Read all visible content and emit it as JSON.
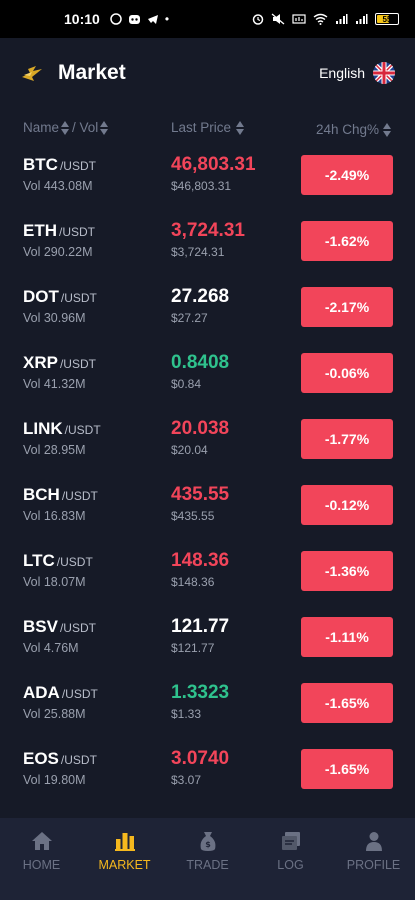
{
  "status_bar": {
    "time": "10:10",
    "battery": "55"
  },
  "header": {
    "title": "Market",
    "language": "English"
  },
  "columns": {
    "name": "Name",
    "vol": "/ Vol",
    "price": "Last Price",
    "change": "24h Chg%"
  },
  "pair_suffix": "/USDT",
  "rows": [
    {
      "symbol": "BTC",
      "pair": "/USDT",
      "volume": "Vol 443.08M",
      "price": "46,803.31",
      "usd": "$46,803.31",
      "change": "-2.49%",
      "price_color": "red"
    },
    {
      "symbol": "ETH",
      "pair": "/USDT",
      "volume": "Vol 290.22M",
      "price": "3,724.31",
      "usd": "$3,724.31",
      "change": "-1.62%",
      "price_color": "red"
    },
    {
      "symbol": "DOT",
      "pair": "/USDT",
      "volume": "Vol 30.96M",
      "price": "27.268",
      "usd": "$27.27",
      "change": "-2.17%",
      "price_color": "white"
    },
    {
      "symbol": "XRP",
      "pair": "/USDT",
      "volume": "Vol 41.32M",
      "price": "0.8408",
      "usd": "$0.84",
      "change": "-0.06%",
      "price_color": "green"
    },
    {
      "symbol": "LINK",
      "pair": "/USDT",
      "volume": "Vol 28.95M",
      "price": "20.038",
      "usd": "$20.04",
      "change": "-1.77%",
      "price_color": "red"
    },
    {
      "symbol": "BCH",
      "pair": "/USDT",
      "volume": "Vol 16.83M",
      "price": "435.55",
      "usd": "$435.55",
      "change": "-0.12%",
      "price_color": "red"
    },
    {
      "symbol": "LTC",
      "pair": "/USDT",
      "volume": "Vol 18.07M",
      "price": "148.36",
      "usd": "$148.36",
      "change": "-1.36%",
      "price_color": "red"
    },
    {
      "symbol": "BSV",
      "pair": "/USDT",
      "volume": "Vol 4.76M",
      "price": "121.77",
      "usd": "$121.77",
      "change": "-1.11%",
      "price_color": "white"
    },
    {
      "symbol": "ADA",
      "pair": "/USDT",
      "volume": "Vol 25.88M",
      "price": "1.3323",
      "usd": "$1.33",
      "change": "-1.65%",
      "price_color": "green"
    },
    {
      "symbol": "EOS",
      "pair": "/USDT",
      "volume": "Vol 19.80M",
      "price": "3.0740",
      "usd": "$3.07",
      "change": "-1.65%",
      "price_color": "red"
    }
  ],
  "nav": [
    {
      "label": "HOME",
      "icon": "home-icon",
      "active": false
    },
    {
      "label": "MARKET",
      "icon": "market-icon",
      "active": true
    },
    {
      "label": "TRADE",
      "icon": "trade-icon",
      "active": false
    },
    {
      "label": "LOG",
      "icon": "log-icon",
      "active": false
    },
    {
      "label": "PROFILE",
      "icon": "profile-icon",
      "active": false
    }
  ],
  "colors": {
    "red": "#f2455a",
    "green": "#2fc28d",
    "accent": "#f5b81e",
    "background": "#161a27",
    "nav_background": "#1e2336"
  }
}
